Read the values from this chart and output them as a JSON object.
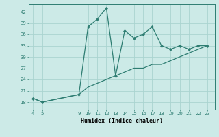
{
  "xlabel": "Humidex (Indice chaleur)",
  "background_color": "#cceae7",
  "grid_color": "#aad4d0",
  "line_color": "#2e7d72",
  "marker_color": "#2e7d72",
  "x_zigzag": [
    4,
    5,
    9,
    10,
    11,
    12,
    13,
    14,
    15,
    16,
    17,
    18,
    19,
    20,
    21,
    22,
    23
  ],
  "y_zigzag": [
    19,
    18,
    20,
    38,
    40,
    43,
    25,
    37,
    35,
    36,
    38,
    33,
    32,
    33,
    32,
    33,
    33
  ],
  "x_diag": [
    4,
    5,
    9,
    10,
    11,
    12,
    13,
    14,
    15,
    16,
    17,
    18,
    19,
    20,
    21,
    22,
    23
  ],
  "y_diag": [
    19,
    18,
    20,
    22,
    23,
    24,
    25,
    26,
    27,
    27,
    28,
    28,
    29,
    30,
    31,
    32,
    33
  ],
  "ylim": [
    16,
    44
  ],
  "yticks": [
    18,
    21,
    24,
    27,
    30,
    33,
    36,
    39,
    42
  ],
  "xlim": [
    3.5,
    23.8
  ],
  "xticks": [
    4,
    5,
    9,
    10,
    11,
    12,
    13,
    14,
    15,
    16,
    17,
    18,
    19,
    20,
    21,
    22,
    23
  ],
  "xlabel_fontsize": 6.0,
  "tick_fontsize": 5.2
}
